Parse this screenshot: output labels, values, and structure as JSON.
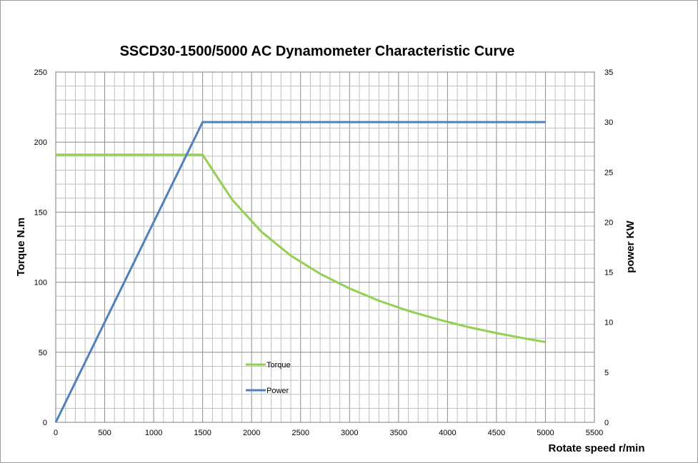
{
  "chart_data": {
    "type": "line",
    "title": "SSCD30-1500/5000  AC Dynamometer Characteristic Curve",
    "xlabel": "Rotate speed r/min",
    "ylabel": "Torque N.m",
    "y2label": "power KW",
    "xlim": [
      0,
      5500
    ],
    "ylim": [
      0,
      250
    ],
    "y2lim": [
      0,
      35
    ],
    "xticks": [
      0,
      500,
      1000,
      1500,
      2000,
      2500,
      3000,
      3500,
      4000,
      4500,
      5000,
      5500
    ],
    "yticks": [
      0,
      50,
      100,
      150,
      200,
      250
    ],
    "y2ticks": [
      0,
      5,
      10,
      15,
      20,
      25,
      30,
      35
    ],
    "grid": true,
    "legend_position": "inside-lower-center",
    "series": [
      {
        "name": "Torque",
        "axis": "left",
        "color": "#92d050",
        "x": [
          0,
          500,
          1000,
          1500,
          1800,
          2100,
          2400,
          2700,
          3000,
          3300,
          3600,
          3900,
          4200,
          4500,
          4800,
          5000
        ],
        "values": [
          191,
          191,
          191,
          191,
          159,
          136,
          119,
          106,
          95.5,
          86.8,
          79.6,
          73.5,
          68.2,
          63.7,
          59.7,
          57.3
        ]
      },
      {
        "name": "Power",
        "axis": "right",
        "color": "#4f81bd",
        "x": [
          0,
          1500,
          2000,
          2500,
          3000,
          3500,
          4000,
          4500,
          5000
        ],
        "values": [
          0,
          30,
          30,
          30,
          30,
          30,
          30,
          30,
          30
        ]
      }
    ]
  }
}
